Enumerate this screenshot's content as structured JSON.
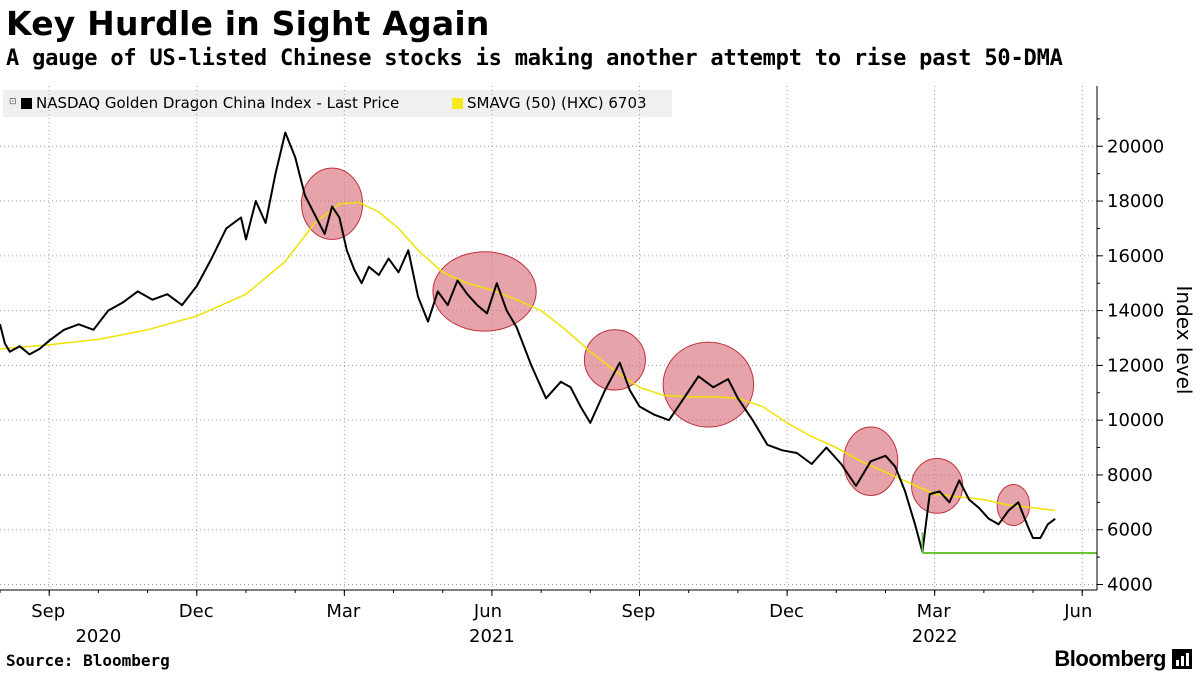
{
  "title": "Key Hurdle in Sight Again",
  "subtitle": "A gauge of US-listed Chinese stocks is making another attempt to rise past 50-DMA",
  "legend": {
    "series1_label": "NASDAQ Golden Dragon China Index - Last Price",
    "series2_label": "SMAVG (50) (HXC) 6703"
  },
  "footer": {
    "source": "Source: Bloomberg",
    "brand": "Bloomberg"
  },
  "colors": {
    "price": "#000000",
    "smavg": "#f0e200",
    "ellipse_fill": "#d9727c",
    "ellipse_stroke": "#c0303c",
    "support_line": "#6ac435"
  },
  "chart_data": {
    "type": "line",
    "title": "Key Hurdle in Sight Again",
    "ylabel": "Index level",
    "xlabel": "",
    "ylim": [
      3800,
      22200
    ],
    "yticks": [
      4000,
      6000,
      8000,
      10000,
      12000,
      14000,
      16000,
      18000,
      20000
    ],
    "x_domain": [
      0,
      22.3
    ],
    "x_unit": "months since 2020-08-01",
    "xticks": [
      {
        "label": "Sep",
        "x": 1
      },
      {
        "label": "Dec",
        "x": 4
      },
      {
        "label": "Mar",
        "x": 7
      },
      {
        "label": "Jun",
        "x": 10
      },
      {
        "label": "Sep",
        "x": 13
      },
      {
        "label": "Dec",
        "x": 16
      },
      {
        "label": "Mar",
        "x": 19
      },
      {
        "label": "Jun",
        "x": 22
      }
    ],
    "year_labels": [
      {
        "label": "2020",
        "x": 2
      },
      {
        "label": "2021",
        "x": 10
      },
      {
        "label": "2022",
        "x": 19
      }
    ],
    "series": [
      {
        "name": "NASDAQ Golden Dragon China Index - Last Price",
        "x": [
          0,
          0.1,
          0.2,
          0.4,
          0.6,
          0.8,
          1.0,
          1.3,
          1.6,
          1.9,
          2.2,
          2.5,
          2.8,
          3.1,
          3.4,
          3.7,
          4.0,
          4.3,
          4.6,
          4.9,
          5.0,
          5.2,
          5.4,
          5.6,
          5.8,
          6.0,
          6.2,
          6.4,
          6.6,
          6.75,
          6.9,
          7.05,
          7.2,
          7.35,
          7.5,
          7.7,
          7.9,
          8.1,
          8.3,
          8.5,
          8.7,
          8.9,
          9.1,
          9.3,
          9.5,
          9.7,
          9.9,
          10.1,
          10.3,
          10.5,
          10.8,
          11.1,
          11.4,
          11.6,
          11.8,
          12.0,
          12.3,
          12.6,
          12.8,
          13.0,
          13.3,
          13.6,
          13.9,
          14.2,
          14.5,
          14.8,
          15.0,
          15.3,
          15.6,
          15.9,
          16.2,
          16.5,
          16.8,
          17.1,
          17.4,
          17.7,
          18.0,
          18.2,
          18.4,
          18.6,
          18.75,
          18.9,
          19.1,
          19.3,
          19.5,
          19.7,
          19.9,
          20.1,
          20.3,
          20.5,
          20.7,
          20.9,
          21.0,
          21.15,
          21.3,
          21.45
        ],
        "values": [
          13500,
          12800,
          12500,
          12700,
          12400,
          12600,
          12900,
          13300,
          13500,
          13300,
          14000,
          14300,
          14700,
          14400,
          14600,
          14200,
          14900,
          15900,
          17000,
          17400,
          16600,
          18000,
          17200,
          19000,
          20500,
          19600,
          18200,
          17500,
          16800,
          17800,
          17400,
          16200,
          15500,
          15000,
          15600,
          15300,
          15900,
          15400,
          16200,
          14500,
          13600,
          14700,
          14200,
          15100,
          14600,
          14200,
          13900,
          15000,
          14000,
          13400,
          12000,
          10800,
          11400,
          11200,
          10500,
          9900,
          11100,
          12100,
          11100,
          10500,
          10200,
          10000,
          10800,
          11600,
          11200,
          11500,
          10800,
          10000,
          9100,
          8900,
          8800,
          8400,
          9000,
          8400,
          7600,
          8500,
          8700,
          8300,
          7400,
          6200,
          5200,
          7300,
          7400,
          7000,
          7800,
          7100,
          6800,
          6400,
          6200,
          6700,
          7000,
          6100,
          5700,
          5700,
          6200,
          6400
        ]
      },
      {
        "name": "SMAVG (50) (HXC) 6703",
        "x": [
          0,
          1,
          2,
          3,
          4,
          5,
          5.8,
          6.4,
          6.9,
          7.3,
          7.7,
          8.1,
          8.5,
          9.0,
          9.5,
          10.0,
          10.5,
          11.0,
          11.5,
          12.0,
          12.5,
          13.0,
          13.5,
          14.0,
          14.5,
          15.0,
          15.5,
          16.0,
          16.5,
          17.0,
          17.5,
          18.0,
          18.5,
          19.0,
          19.5,
          20.0,
          20.5,
          21.0,
          21.45
        ],
        "values": [
          12600,
          12750,
          12950,
          13300,
          13800,
          14600,
          15800,
          17200,
          17900,
          17950,
          17600,
          17000,
          16200,
          15400,
          15000,
          14750,
          14400,
          14000,
          13300,
          12500,
          11800,
          11200,
          10900,
          10850,
          10850,
          10800,
          10500,
          9900,
          9400,
          9000,
          8500,
          8100,
          7700,
          7300,
          7200,
          7100,
          6900,
          6800,
          6703
        ]
      }
    ],
    "annotations": {
      "ellipses": [
        {
          "cx": 6.75,
          "cy": 17900,
          "rx_months": 0.62,
          "ry": 1300
        },
        {
          "cx": 9.85,
          "cy": 14700,
          "rx_months": 1.05,
          "ry": 1450
        },
        {
          "cx": 12.5,
          "cy": 12200,
          "rx_months": 0.62,
          "ry": 1100
        },
        {
          "cx": 14.4,
          "cy": 11300,
          "rx_months": 0.92,
          "ry": 1550
        },
        {
          "cx": 17.7,
          "cy": 8500,
          "rx_months": 0.55,
          "ry": 1250
        },
        {
          "cx": 19.05,
          "cy": 7600,
          "rx_months": 0.52,
          "ry": 1000
        },
        {
          "cx": 20.6,
          "cy": 6900,
          "rx_months": 0.33,
          "ry": 750
        }
      ],
      "support_level": {
        "value": 5150,
        "x_start": 18.75,
        "x_end": 22.3
      }
    }
  }
}
